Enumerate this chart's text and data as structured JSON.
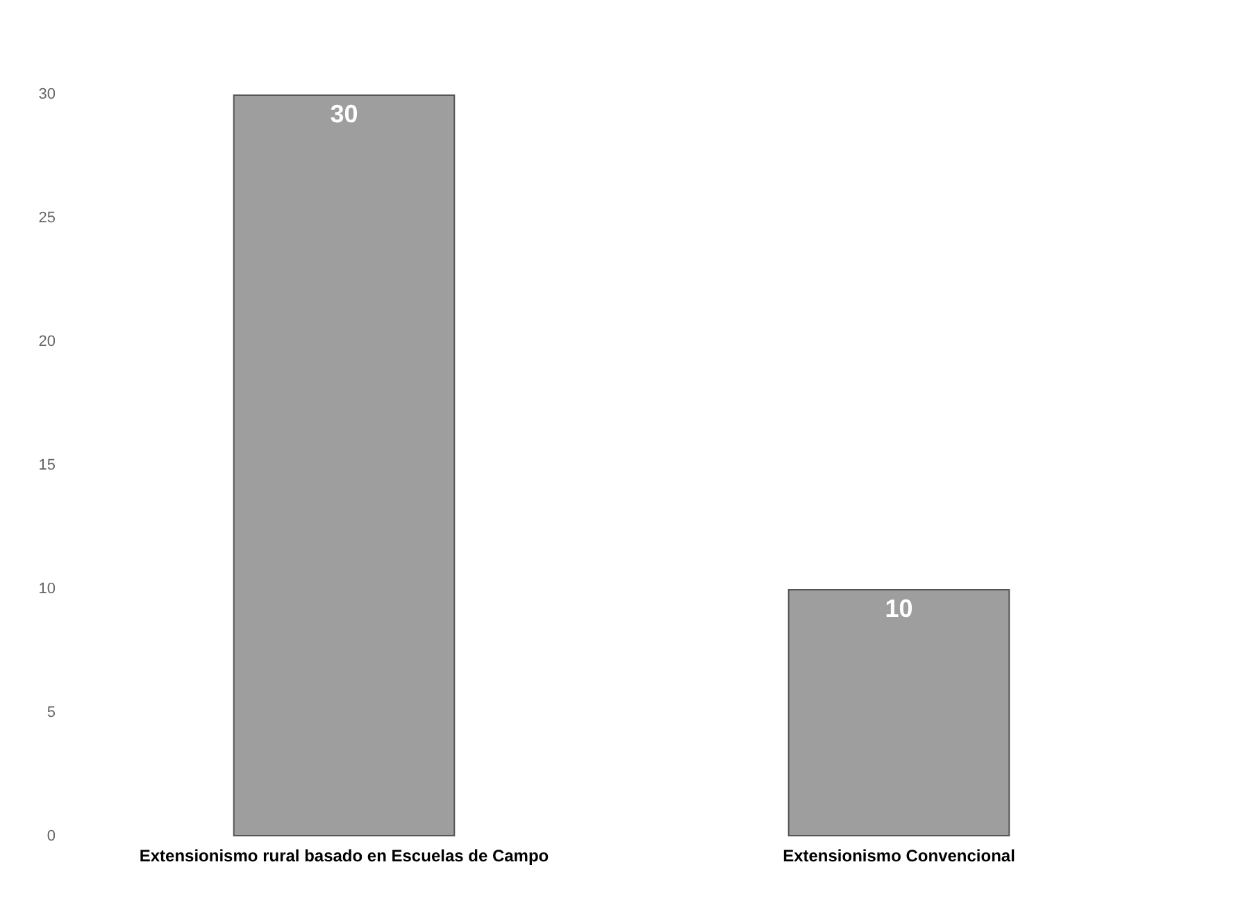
{
  "chart_data": {
    "type": "bar",
    "categories": [
      "Extensionismo rural basado en Escuelas de Campo",
      "Extensionismo Convencional"
    ],
    "values": [
      30,
      10
    ],
    "color": "#9e9e9e",
    "ylim": [
      0,
      30
    ],
    "yticks": [
      0,
      5,
      10,
      15,
      20,
      25,
      30
    ],
    "grid": false,
    "data_labels": true
  }
}
